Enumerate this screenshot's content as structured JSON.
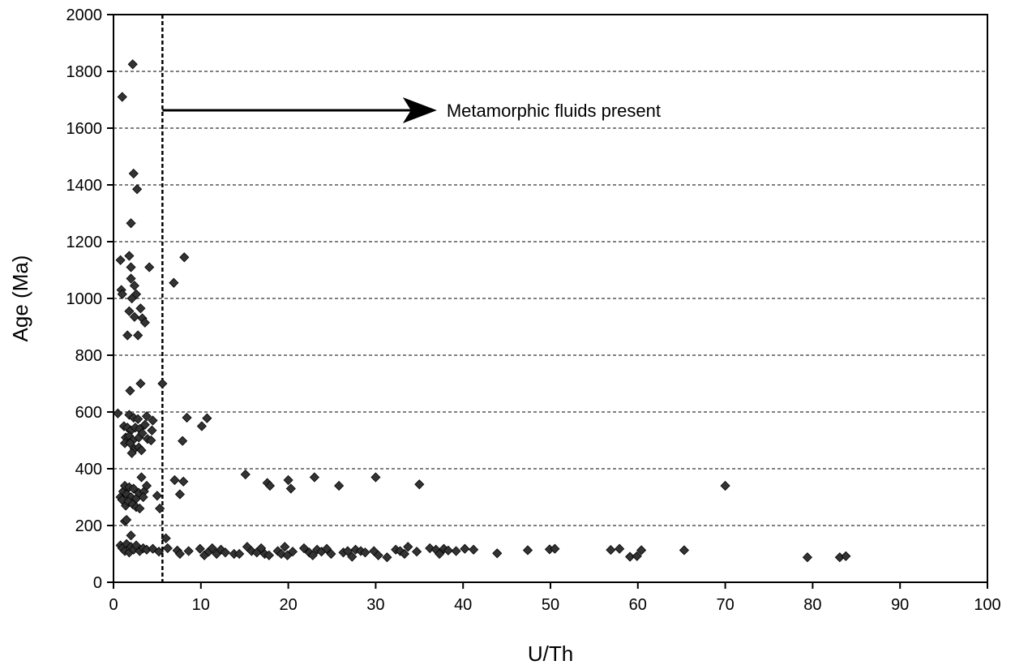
{
  "chart_data": {
    "type": "scatter",
    "title": "",
    "xlabel": "U/Th",
    "ylabel": "Age (Ma)",
    "xlim": [
      0,
      100
    ],
    "ylim": [
      0,
      2000
    ],
    "x_ticks": [
      0,
      10,
      20,
      30,
      40,
      50,
      60,
      70,
      80,
      90,
      100
    ],
    "y_ticks": [
      0,
      200,
      400,
      600,
      800,
      1000,
      1200,
      1400,
      1600,
      1800,
      2000
    ],
    "grid": "horizontal dashed",
    "legend": "none",
    "marker": "diamond",
    "marker_color": "#333333",
    "threshold_line": {
      "x": 5.6,
      "style": "dashed",
      "color": "#000000"
    },
    "annotation": {
      "text": "Metamorphic fluids present",
      "arrow_from_x": 5.6,
      "arrow_to_x": 37,
      "y": 1700
    },
    "series": [
      {
        "values": [
          [
            0.5,
            595
          ],
          [
            0.8,
            1135
          ],
          [
            1.0,
            1710
          ],
          [
            0.9,
            1030
          ],
          [
            1.0,
            1015
          ],
          [
            2.2,
            1825
          ],
          [
            2.3,
            1440
          ],
          [
            2.7,
            1385
          ],
          [
            2.0,
            1265
          ],
          [
            1.8,
            1150
          ],
          [
            2.0,
            1110
          ],
          [
            2.0,
            1070
          ],
          [
            2.4,
            1045
          ],
          [
            2.6,
            1015
          ],
          [
            2.1,
            1000
          ],
          [
            4.1,
            1110
          ],
          [
            3.1,
            965
          ],
          [
            1.8,
            955
          ],
          [
            2.4,
            935
          ],
          [
            3.3,
            930
          ],
          [
            3.6,
            915
          ],
          [
            1.6,
            870
          ],
          [
            2.8,
            870
          ],
          [
            6.9,
            1055
          ],
          [
            8.1,
            1145
          ],
          [
            3.1,
            700
          ],
          [
            1.9,
            675
          ],
          [
            5.6,
            700
          ],
          [
            1.8,
            590
          ],
          [
            2.3,
            580
          ],
          [
            2.8,
            575
          ],
          [
            3.8,
            585
          ],
          [
            4.5,
            570
          ],
          [
            1.2,
            550
          ],
          [
            1.6,
            545
          ],
          [
            2.0,
            535
          ],
          [
            2.5,
            545
          ],
          [
            3.0,
            540
          ],
          [
            3.6,
            555
          ],
          [
            4.4,
            535
          ],
          [
            1.4,
            510
          ],
          [
            1.8,
            515
          ],
          [
            2.2,
            500
          ],
          [
            2.9,
            510
          ],
          [
            3.3,
            525
          ],
          [
            3.9,
            505
          ],
          [
            4.3,
            500
          ],
          [
            1.3,
            490
          ],
          [
            1.9,
            490
          ],
          [
            2.4,
            470
          ],
          [
            2.9,
            475
          ],
          [
            3.2,
            465
          ],
          [
            2.1,
            455
          ],
          [
            8.4,
            580
          ],
          [
            10.1,
            550
          ],
          [
            10.7,
            578
          ],
          [
            7.9,
            498
          ],
          [
            0.8,
            300
          ],
          [
            1.1,
            320
          ],
          [
            1.3,
            340
          ],
          [
            1.5,
            310
          ],
          [
            1.8,
            335
          ],
          [
            2.0,
            300
          ],
          [
            2.3,
            330
          ],
          [
            2.6,
            295
          ],
          [
            2.9,
            315
          ],
          [
            3.2,
            370
          ],
          [
            3.5,
            320
          ],
          [
            3.8,
            340
          ],
          [
            1.0,
            290
          ],
          [
            1.4,
            270
          ],
          [
            1.7,
            285
          ],
          [
            2.2,
            275
          ],
          [
            2.6,
            265
          ],
          [
            3.0,
            260
          ],
          [
            3.4,
            300
          ],
          [
            1.3,
            215
          ],
          [
            1.5,
            220
          ],
          [
            2.0,
            165
          ],
          [
            5.0,
            305
          ],
          [
            5.3,
            260
          ],
          [
            7.0,
            360
          ],
          [
            7.6,
            310
          ],
          [
            8.0,
            355
          ],
          [
            15.1,
            380
          ],
          [
            17.6,
            350
          ],
          [
            17.9,
            340
          ],
          [
            20.0,
            360
          ],
          [
            20.3,
            330
          ],
          [
            23.0,
            370
          ],
          [
            25.8,
            340
          ],
          [
            30.0,
            370
          ],
          [
            35.0,
            345
          ],
          [
            70.0,
            340
          ],
          [
            0.8,
            130
          ],
          [
            1.0,
            120
          ],
          [
            1.3,
            110
          ],
          [
            1.5,
            135
          ],
          [
            1.8,
            105
          ],
          [
            2.0,
            125
          ],
          [
            2.3,
            115
          ],
          [
            2.6,
            130
          ],
          [
            3.0,
            110
          ],
          [
            3.4,
            120
          ],
          [
            3.8,
            115
          ],
          [
            4.5,
            118
          ],
          [
            5.2,
            108
          ],
          [
            6.0,
            155
          ],
          [
            6.2,
            120
          ],
          [
            7.3,
            112
          ],
          [
            7.6,
            100
          ],
          [
            8.6,
            110
          ],
          [
            9.9,
            118
          ],
          [
            10.4,
            95
          ],
          [
            10.9,
            108
          ],
          [
            11.3,
            120
          ],
          [
            11.8,
            100
          ],
          [
            12.3,
            115
          ],
          [
            12.8,
            105
          ],
          [
            13.8,
            100
          ],
          [
            14.4,
            100
          ],
          [
            15.3,
            125
          ],
          [
            15.8,
            110
          ],
          [
            16.4,
            105
          ],
          [
            16.9,
            120
          ],
          [
            17.3,
            100
          ],
          [
            17.8,
            95
          ],
          [
            18.8,
            110
          ],
          [
            19.2,
            100
          ],
          [
            19.6,
            125
          ],
          [
            19.9,
            95
          ],
          [
            20.5,
            108
          ],
          [
            21.8,
            120
          ],
          [
            22.4,
            105
          ],
          [
            22.8,
            95
          ],
          [
            23.3,
            115
          ],
          [
            23.8,
            108
          ],
          [
            24.4,
            118
          ],
          [
            24.9,
            100
          ],
          [
            26.3,
            105
          ],
          [
            26.8,
            110
          ],
          [
            27.3,
            90
          ],
          [
            27.7,
            115
          ],
          [
            28.3,
            110
          ],
          [
            28.8,
            105
          ],
          [
            29.8,
            110
          ],
          [
            30.3,
            95
          ],
          [
            31.3,
            88
          ],
          [
            32.3,
            115
          ],
          [
            32.8,
            110
          ],
          [
            33.3,
            100
          ],
          [
            33.7,
            125
          ],
          [
            34.7,
            108
          ],
          [
            36.2,
            120
          ],
          [
            36.9,
            115
          ],
          [
            37.3,
            100
          ],
          [
            37.8,
            118
          ],
          [
            38.3,
            112
          ],
          [
            39.2,
            110
          ],
          [
            40.2,
            118
          ],
          [
            41.2,
            115
          ],
          [
            43.9,
            102
          ],
          [
            47.4,
            113
          ],
          [
            49.9,
            116
          ],
          [
            50.5,
            118
          ],
          [
            56.9,
            114
          ],
          [
            57.9,
            118
          ],
          [
            59.1,
            90
          ],
          [
            59.9,
            92
          ],
          [
            60.4,
            113
          ],
          [
            65.3,
            113
          ],
          [
            79.4,
            88
          ],
          [
            83.1,
            88
          ],
          [
            83.8,
            92
          ]
        ]
      }
    ]
  }
}
